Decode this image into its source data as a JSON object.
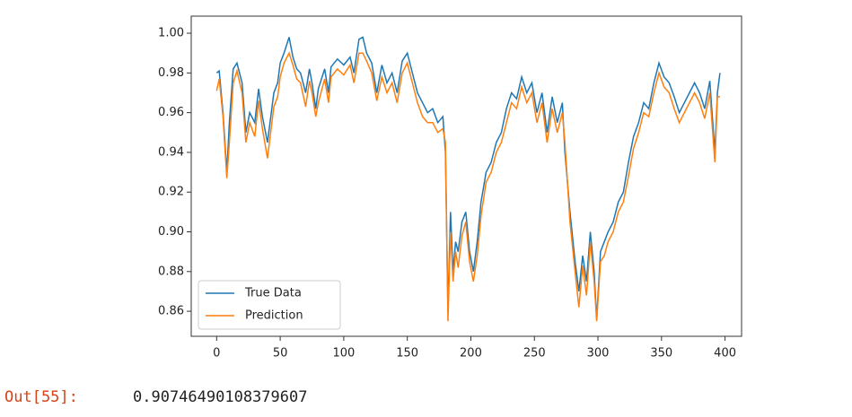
{
  "chart_data": {
    "type": "line",
    "x": [
      0,
      2,
      5,
      8,
      10,
      13,
      16,
      20,
      23,
      26,
      30,
      33,
      36,
      40,
      45,
      48,
      50,
      53,
      57,
      60,
      63,
      66,
      70,
      73,
      75,
      78,
      80,
      85,
      88,
      90,
      95,
      100,
      105,
      108,
      112,
      115,
      118,
      122,
      126,
      130,
      134,
      138,
      142,
      146,
      150,
      154,
      158,
      162,
      166,
      170,
      174,
      178,
      180,
      182,
      184,
      186,
      188,
      190,
      193,
      196,
      199,
      202,
      205,
      208,
      212,
      216,
      220,
      224,
      228,
      232,
      236,
      240,
      244,
      248,
      252,
      256,
      260,
      264,
      268,
      272,
      274,
      278,
      282,
      285,
      288,
      291,
      294,
      297,
      299,
      302,
      305,
      308,
      312,
      316,
      320,
      324,
      328,
      332,
      336,
      340,
      344,
      348,
      352,
      356,
      360,
      364,
      368,
      372,
      376,
      380,
      384,
      388,
      392,
      394,
      396
    ],
    "series": [
      {
        "name": "True Data",
        "color": "#1f77b4",
        "values": [
          0.98,
          0.981,
          0.96,
          0.93,
          0.955,
          0.982,
          0.985,
          0.975,
          0.95,
          0.96,
          0.955,
          0.972,
          0.958,
          0.945,
          0.97,
          0.975,
          0.985,
          0.99,
          0.998,
          0.988,
          0.982,
          0.98,
          0.97,
          0.982,
          0.975,
          0.962,
          0.972,
          0.982,
          0.97,
          0.983,
          0.987,
          0.984,
          0.988,
          0.98,
          0.997,
          0.998,
          0.99,
          0.985,
          0.97,
          0.984,
          0.975,
          0.98,
          0.97,
          0.986,
          0.99,
          0.98,
          0.97,
          0.965,
          0.96,
          0.962,
          0.955,
          0.958,
          0.94,
          0.86,
          0.91,
          0.88,
          0.895,
          0.89,
          0.905,
          0.91,
          0.89,
          0.88,
          0.895,
          0.915,
          0.93,
          0.935,
          0.945,
          0.95,
          0.962,
          0.97,
          0.967,
          0.978,
          0.97,
          0.975,
          0.96,
          0.97,
          0.95,
          0.968,
          0.955,
          0.965,
          0.94,
          0.91,
          0.885,
          0.87,
          0.888,
          0.875,
          0.9,
          0.88,
          0.856,
          0.89,
          0.895,
          0.9,
          0.905,
          0.915,
          0.92,
          0.935,
          0.948,
          0.955,
          0.965,
          0.962,
          0.975,
          0.985,
          0.978,
          0.975,
          0.968,
          0.96,
          0.965,
          0.97,
          0.975,
          0.97,
          0.962,
          0.976,
          0.94,
          0.97,
          0.98
        ]
      },
      {
        "name": "Prediction",
        "color": "#ff7f0e",
        "values": [
          0.971,
          0.977,
          0.958,
          0.927,
          0.945,
          0.975,
          0.981,
          0.97,
          0.945,
          0.955,
          0.948,
          0.966,
          0.952,
          0.937,
          0.963,
          0.968,
          0.978,
          0.985,
          0.99,
          0.984,
          0.977,
          0.975,
          0.963,
          0.976,
          0.97,
          0.958,
          0.965,
          0.977,
          0.965,
          0.978,
          0.982,
          0.979,
          0.984,
          0.975,
          0.99,
          0.99,
          0.986,
          0.98,
          0.966,
          0.978,
          0.97,
          0.975,
          0.965,
          0.98,
          0.985,
          0.975,
          0.965,
          0.958,
          0.955,
          0.955,
          0.95,
          0.952,
          0.945,
          0.855,
          0.9,
          0.875,
          0.89,
          0.882,
          0.898,
          0.905,
          0.885,
          0.875,
          0.888,
          0.908,
          0.925,
          0.93,
          0.94,
          0.945,
          0.955,
          0.965,
          0.962,
          0.973,
          0.965,
          0.97,
          0.955,
          0.965,
          0.945,
          0.962,
          0.95,
          0.96,
          0.945,
          0.905,
          0.88,
          0.862,
          0.883,
          0.868,
          0.895,
          0.875,
          0.855,
          0.885,
          0.888,
          0.895,
          0.9,
          0.91,
          0.915,
          0.928,
          0.942,
          0.95,
          0.96,
          0.958,
          0.97,
          0.98,
          0.973,
          0.97,
          0.962,
          0.955,
          0.96,
          0.965,
          0.97,
          0.965,
          0.957,
          0.97,
          0.935,
          0.968,
          0.968
        ]
      }
    ],
    "xlim": [
      -20,
      413
    ],
    "ylim": [
      0.8474,
      1.0086
    ],
    "xticks": [
      0,
      50,
      100,
      150,
      200,
      250,
      300,
      350,
      400
    ],
    "yticks": [
      {
        "value": 0.86,
        "label": "0.86"
      },
      {
        "value": 0.88,
        "label": "0.88"
      },
      {
        "value": 0.9,
        "label": "0.90"
      },
      {
        "value": 0.92,
        "label": "0.92"
      },
      {
        "value": 0.94,
        "label": "0.94"
      },
      {
        "value": 0.96,
        "label": "0.96"
      },
      {
        "value": 0.98,
        "label": "0.98"
      },
      {
        "value": 1.0,
        "label": "1.00"
      }
    ],
    "legend": "lower left"
  },
  "output": {
    "prompt": "Out[55]:",
    "text": "0.90746490108379607"
  }
}
